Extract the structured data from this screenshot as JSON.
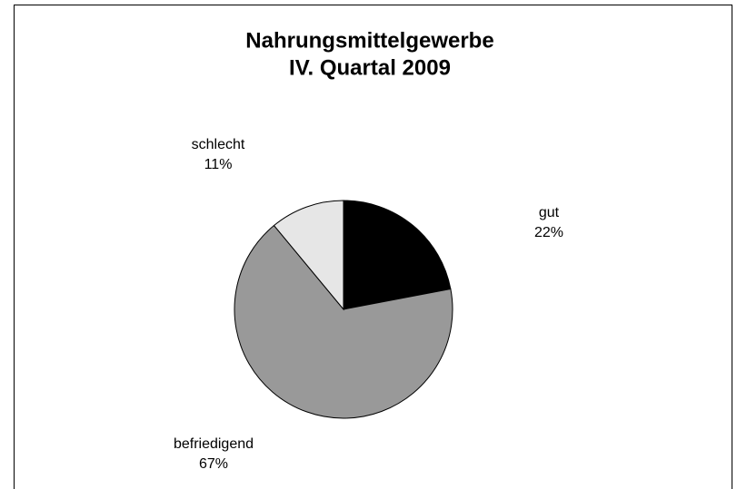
{
  "chart_data": {
    "type": "pie",
    "title": [
      "Nahrungsmittelgewerbe",
      "IV. Quartal 2009"
    ],
    "categories": [
      "gut",
      "befriedigend",
      "schlecht"
    ],
    "values": [
      22,
      67,
      11
    ],
    "value_labels": [
      "22%",
      "67%",
      "11%"
    ],
    "colors": [
      "#000000",
      "#999999",
      "#e6e6e6"
    ]
  }
}
